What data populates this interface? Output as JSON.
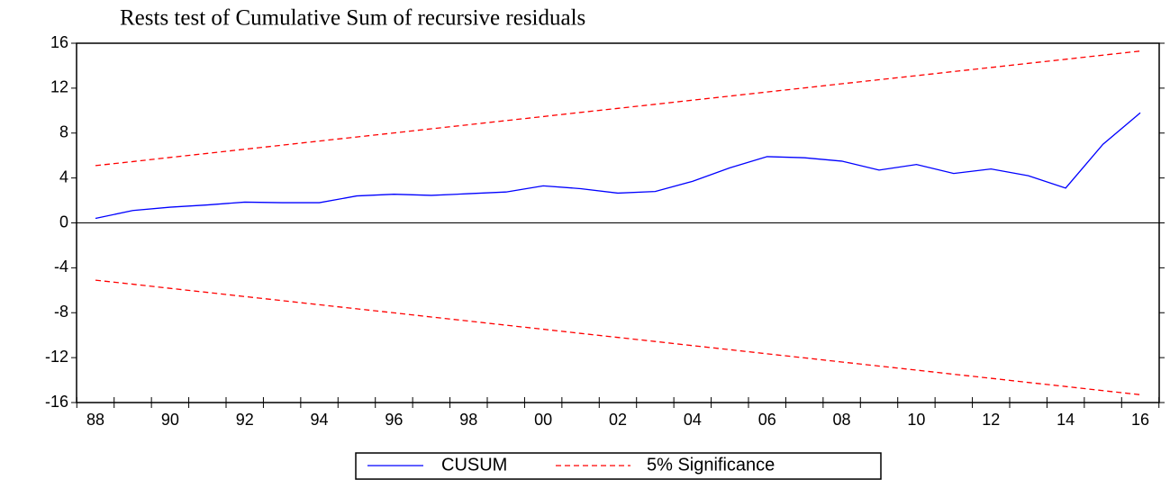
{
  "chart_data": {
    "type": "line",
    "title": "Rests test of Cumulative Sum of recursive residuals",
    "categories": [
      "88",
      null,
      "90",
      null,
      "92",
      null,
      "94",
      null,
      "96",
      null,
      "98",
      null,
      "00",
      null,
      "02",
      null,
      "04",
      null,
      "06",
      null,
      "08",
      null,
      "10",
      null,
      "12",
      null,
      "14",
      null,
      "16"
    ],
    "series": [
      {
        "name": "CUSUM",
        "color": "#0000ff",
        "values": [
          0.4,
          1.1,
          1.4,
          1.6,
          1.85,
          1.8,
          1.8,
          2.4,
          2.55,
          2.45,
          2.6,
          2.75,
          3.3,
          3.05,
          2.65,
          2.8,
          3.7,
          4.9,
          5.9,
          5.8,
          5.5,
          4.7,
          5.2,
          4.4,
          4.8,
          4.2,
          3.1,
          7.0,
          9.8
        ]
      },
      {
        "name": "5% Significance",
        "color": "#ff0000",
        "values": [
          5.1,
          5.46,
          5.83,
          6.19,
          6.56,
          6.92,
          7.29,
          7.65,
          8.01,
          8.38,
          8.74,
          9.11,
          9.47,
          9.84,
          10.2,
          10.56,
          10.93,
          11.29,
          11.66,
          12.02,
          12.39,
          12.75,
          13.11,
          13.48,
          13.84,
          14.21,
          14.57,
          14.94,
          15.3
        ],
        "lower": [
          -5.1,
          -5.46,
          -5.83,
          -6.19,
          -6.56,
          -6.92,
          -7.29,
          -7.65,
          -8.01,
          -8.38,
          -8.74,
          -9.11,
          -9.47,
          -9.84,
          -10.2,
          -10.56,
          -10.93,
          -11.29,
          -11.66,
          -12.02,
          -12.39,
          -12.75,
          -13.11,
          -13.48,
          -13.84,
          -14.21,
          -14.57,
          -14.94,
          -15.3
        ]
      }
    ],
    "ylim": [
      -16,
      16
    ],
    "yticks": [
      -16,
      -12,
      -8,
      -4,
      0,
      4,
      8,
      12,
      16
    ],
    "legend": "bottom"
  }
}
